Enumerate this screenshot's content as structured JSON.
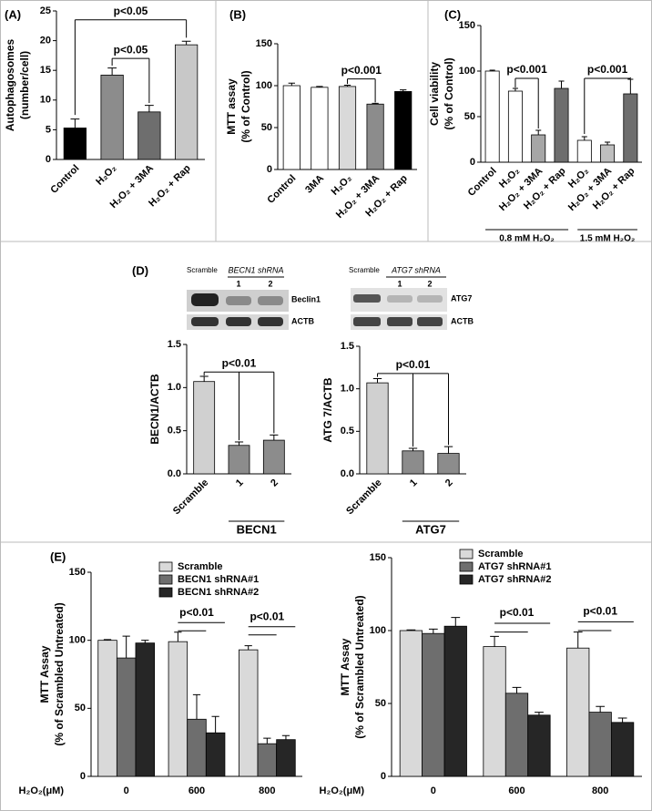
{
  "chart_data": [
    {
      "type": "bar",
      "panel": "(A)",
      "ylabel": [
        "Autophagosomes",
        "(number/cell)"
      ],
      "categories": [
        "Control",
        "H₂O₂",
        "H₂O₂ + 3MA",
        "H₂O₂ + Rap"
      ],
      "values": [
        5.3,
        14.2,
        8.0,
        19.3
      ],
      "errors": [
        1.5,
        1.2,
        1.1,
        0.6
      ],
      "colors": [
        "#000000",
        "#8c8c8c",
        "#6e6e6e",
        "#c8c8c8"
      ],
      "ylim": [
        0,
        25
      ],
      "yticks": [
        0,
        5,
        10,
        15,
        20,
        25
      ],
      "annotations": [
        "p<0.05",
        "p<0.05"
      ]
    },
    {
      "type": "bar",
      "panel": "(B)",
      "ylabel": [
        "MTT assay",
        "(% of Control)"
      ],
      "categories": [
        "Control",
        "3MA",
        "H₂O₂",
        "H₂O₂ + 3MA",
        "H₂O₂ + Rap"
      ],
      "values": [
        100,
        98,
        99,
        78,
        93
      ],
      "errors": [
        3,
        1,
        1.5,
        1,
        2
      ],
      "colors": [
        "#ffffff",
        "#ffffff",
        "#d9d9d9",
        "#8c8c8c",
        "#000000"
      ],
      "ylim": [
        0,
        150
      ],
      "yticks": [
        0,
        50,
        100,
        150
      ],
      "annotations": [
        "p<0.001"
      ]
    },
    {
      "type": "bar",
      "panel": "(C)",
      "ylabel": [
        "Cell viability",
        "(% of Control)"
      ],
      "categories": [
        "Control",
        "H₂O₂",
        "H₂O₂ + 3MA",
        "H₂O₂ + Rap",
        "H₂O₂",
        "H₂O₂ + 3MA",
        "H₂O₂ + Rap"
      ],
      "values": [
        100,
        78,
        30,
        81,
        24,
        19,
        75
      ],
      "errors": [
        1,
        3,
        5,
        8,
        4,
        3,
        16
      ],
      "colors": [
        "#ffffff",
        "#ffffff",
        "#a6a6a6",
        "#6e6e6e",
        "#ffffff",
        "#bfbfbf",
        "#6e6e6e"
      ],
      "ylim": [
        0,
        150
      ],
      "yticks": [
        0,
        50,
        100,
        150
      ],
      "group_labels": [
        "0.8 mM H₂O₂",
        "1.5 mM H₂O₂"
      ],
      "annotations": [
        "p<0.001",
        "p<0.001"
      ]
    },
    {
      "type": "bar",
      "panel": "(D)",
      "ylabel": [
        "BECN1/ACTB"
      ],
      "categories": [
        "Scramble",
        "1",
        "2"
      ],
      "values": [
        1.07,
        0.33,
        0.39
      ],
      "errors": [
        0.06,
        0.04,
        0.06
      ],
      "colors": [
        "#d0d0d0",
        "#8c8c8c",
        "#8c8c8c"
      ],
      "ylim": [
        0,
        1.5
      ],
      "yticks": [
        {
          "value": 0,
          "label": "0.0"
        },
        0.5,
        {
          "value": 1,
          "label": "1.0"
        },
        1.5
      ],
      "group_labels": [
        "BECN1"
      ],
      "annotations": [
        "p<0.01"
      ]
    },
    {
      "type": "bar",
      "ylabel": [
        "ATG 7/ACTB"
      ],
      "categories": [
        "Scramble",
        "1",
        "2"
      ],
      "values": [
        1.07,
        0.27,
        0.24
      ],
      "errors": [
        0.05,
        0.03,
        0.08
      ],
      "colors": [
        "#d0d0d0",
        "#8c8c8c",
        "#8c8c8c"
      ],
      "ylim": [
        0,
        1.5
      ],
      "yticks": [
        {
          "value": 0,
          "label": "0.0"
        },
        0.5,
        {
          "value": 1,
          "label": "1.0"
        },
        1.5
      ],
      "group_labels": [
        "ATG7"
      ],
      "annotations": [
        "p<0.01"
      ]
    },
    {
      "type": "grouped_bar",
      "panel": "(E)",
      "ylabel": [
        "MTT Assay",
        "(% of Scrambled Untreated)"
      ],
      "xlabel": "H₂O₂(μM)",
      "categories": [
        "0",
        "600",
        "800"
      ],
      "series": [
        {
          "name": "Scramble",
          "color": "#d9d9d9",
          "values": [
            100,
            99,
            93
          ],
          "errors": [
            0.5,
            7,
            3
          ]
        },
        {
          "name": "BECN1 shRNA#1",
          "color": "#6e6e6e",
          "values": [
            87,
            42,
            24
          ],
          "errors": [
            16,
            18,
            4
          ]
        },
        {
          "name": "BECN1 shRNA#2",
          "color": "#262626",
          "values": [
            98,
            32,
            27
          ],
          "errors": [
            2,
            12,
            3
          ]
        }
      ],
      "ylim": [
        0,
        150
      ],
      "yticks": [
        0,
        50,
        100,
        150
      ],
      "annotations": [
        "p<0.01",
        "p<0.01"
      ]
    },
    {
      "type": "grouped_bar",
      "ylabel": [
        "MTT Assay",
        "(% of Scrambled Untreated)"
      ],
      "xlabel": "H₂O₂(μM)",
      "categories": [
        "0",
        "600",
        "800"
      ],
      "series": [
        {
          "name": "Scramble",
          "color": "#d9d9d9",
          "values": [
            100,
            89,
            88
          ],
          "errors": [
            0.5,
            7,
            11
          ]
        },
        {
          "name": "ATG7 shRNA#1",
          "color": "#6e6e6e",
          "values": [
            98,
            57,
            44
          ],
          "errors": [
            3,
            4,
            4
          ]
        },
        {
          "name": "ATG7 shRNA#2",
          "color": "#262626",
          "values": [
            103,
            42,
            37
          ],
          "errors": [
            6,
            2,
            3
          ]
        }
      ],
      "ylim": [
        0,
        150
      ],
      "yticks": [
        0,
        50,
        100,
        150
      ],
      "annotations": [
        "p<0.01",
        "p<0.01"
      ]
    }
  ],
  "blots": [
    {
      "control": "Scramble",
      "shrna": "BECN1 shRNA",
      "lanes": [
        "1",
        "2"
      ],
      "bands": [
        "Beclin1",
        "ACTB"
      ]
    },
    {
      "control": "Scramble",
      "shrna": "ATG7 shRNA",
      "lanes": [
        "1",
        "2"
      ],
      "bands": [
        "ATG7",
        "ACTB"
      ]
    }
  ]
}
